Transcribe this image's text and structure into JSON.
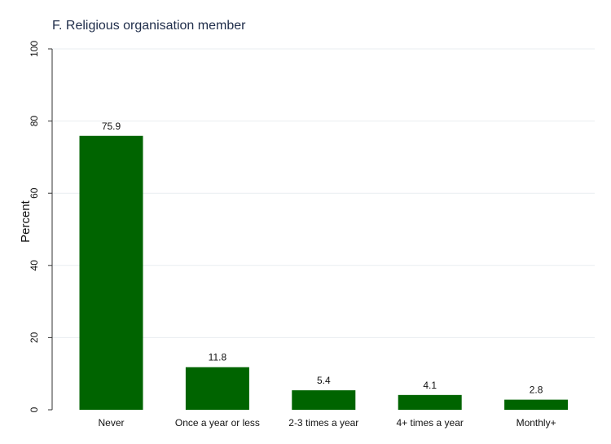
{
  "chart_data": {
    "type": "bar",
    "title": "F. Religious organisation member",
    "xlabel": "",
    "ylabel": "Percent",
    "categories": [
      "Never",
      "Once a year or less",
      "2-3 times a year",
      "4+ times a year",
      "Monthly+"
    ],
    "values": [
      75.9,
      11.8,
      5.4,
      4.1,
      2.8
    ],
    "data_labels": [
      "75.9",
      "11.8",
      "5.4",
      "4.1",
      "2.8"
    ],
    "ylim": [
      0,
      100
    ],
    "yticks": [
      0,
      20,
      40,
      60,
      80,
      100
    ],
    "ytick_labels": [
      "0",
      "20",
      "40",
      "60",
      "80",
      "100"
    ],
    "bar_color": "#006400",
    "grid": true,
    "legend": "none"
  }
}
